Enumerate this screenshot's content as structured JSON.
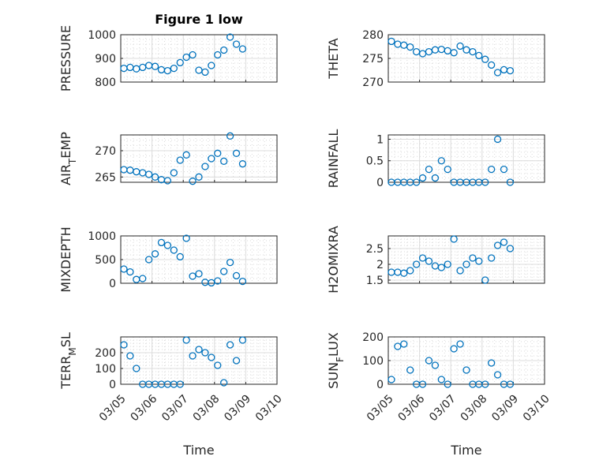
{
  "figure": {
    "title": "Figure 1 low"
  },
  "chart_data": [
    {
      "type": "scatter",
      "name": "PRESSURE",
      "ylabel": "PRESSURE",
      "ylabel_sub": "",
      "ylim": [
        800,
        1000
      ],
      "yticks": [
        "800",
        "900",
        "1000"
      ],
      "ytick_values": [
        800,
        900,
        1000
      ],
      "xlabel": "",
      "xticks": [],
      "title": "Figure 1 low",
      "color": "#0072BD",
      "x": [
        0.1,
        0.3,
        0.5,
        0.7,
        0.9,
        1.1,
        1.3,
        1.5,
        1.7,
        1.9,
        2.1,
        2.3,
        2.5,
        2.7,
        2.9,
        3.1,
        3.3,
        3.5,
        3.7,
        3.9
      ],
      "y": [
        858,
        862,
        856,
        862,
        870,
        866,
        852,
        848,
        858,
        882,
        905,
        915,
        850,
        842,
        870,
        915,
        935,
        990,
        960,
        940
      ]
    },
    {
      "type": "scatter",
      "name": "THETA",
      "ylabel": "THETA",
      "ylabel_sub": "",
      "ylim": [
        270,
        280
      ],
      "yticks": [
        "270",
        "275",
        "280"
      ],
      "ytick_values": [
        270,
        275,
        280
      ],
      "xlabel": "",
      "xticks": [],
      "title": "",
      "color": "#0072BD",
      "x": [
        0.1,
        0.3,
        0.5,
        0.7,
        0.9,
        1.1,
        1.3,
        1.5,
        1.7,
        1.9,
        2.1,
        2.3,
        2.5,
        2.7,
        2.9,
        3.1,
        3.3,
        3.5,
        3.7,
        3.9
      ],
      "y": [
        278.6,
        278.0,
        277.8,
        277.4,
        276.4,
        276.0,
        276.4,
        276.8,
        276.9,
        276.6,
        276.2,
        277.6,
        276.8,
        276.4,
        275.6,
        274.8,
        273.6,
        272.0,
        272.6,
        272.4
      ]
    },
    {
      "type": "scatter",
      "name": "AIR_TEMP",
      "ylabel": "AIR",
      "ylabel_sub": "T",
      "ylabel_rest": "EMP",
      "ylim": [
        264,
        273
      ],
      "yticks": [
        "265",
        "270"
      ],
      "ytick_values": [
        265,
        270
      ],
      "xlabel": "",
      "xticks": [],
      "title": "",
      "color": "#0072BD",
      "x": [
        0.1,
        0.3,
        0.5,
        0.7,
        0.9,
        1.1,
        1.3,
        1.5,
        1.7,
        1.9,
        2.1,
        2.3,
        2.5,
        2.7,
        2.9,
        3.1,
        3.3,
        3.5,
        3.7,
        3.9
      ],
      "y": [
        266.4,
        266.3,
        266.0,
        265.8,
        265.5,
        265.0,
        264.5,
        264.3,
        265.8,
        268.2,
        269.2,
        264.2,
        265.0,
        267.0,
        268.5,
        269.5,
        268.0,
        272.8,
        269.5,
        267.5
      ]
    },
    {
      "type": "scatter",
      "name": "RAINFALL",
      "ylabel": "RAINFALL",
      "ylabel_sub": "",
      "ylim": [
        0,
        1.1
      ],
      "yticks": [
        "0",
        "0.5",
        "1"
      ],
      "ytick_values": [
        0,
        0.5,
        1
      ],
      "xlabel": "",
      "xticks": [],
      "title": "",
      "color": "#0072BD",
      "x": [
        0.1,
        0.3,
        0.5,
        0.7,
        0.9,
        1.1,
        1.3,
        1.5,
        1.7,
        1.9,
        2.1,
        2.3,
        2.5,
        2.7,
        2.9,
        3.1,
        3.3,
        3.5,
        3.7,
        3.9
      ],
      "y": [
        0,
        0,
        0,
        0,
        0,
        0.1,
        0.3,
        0.1,
        0.5,
        0.3,
        0,
        0,
        0,
        0,
        0,
        0,
        0.3,
        1.0,
        0.3,
        0
      ]
    },
    {
      "type": "scatter",
      "name": "MIXDEPTH",
      "ylabel": "MIXDEPTH",
      "ylabel_sub": "",
      "ylim": [
        0,
        1000
      ],
      "yticks": [
        "0",
        "500",
        "1000"
      ],
      "ytick_values": [
        0,
        500,
        1000
      ],
      "xlabel": "",
      "xticks": [],
      "title": "",
      "color": "#0072BD",
      "x": [
        0.1,
        0.3,
        0.5,
        0.7,
        0.9,
        1.1,
        1.3,
        1.5,
        1.7,
        1.9,
        2.1,
        2.3,
        2.5,
        2.7,
        2.9,
        3.1,
        3.3,
        3.5,
        3.7,
        3.9
      ],
      "y": [
        300,
        240,
        80,
        100,
        500,
        620,
        860,
        800,
        700,
        560,
        950,
        150,
        200,
        20,
        10,
        50,
        250,
        440,
        160,
        40
      ]
    },
    {
      "type": "scatter",
      "name": "H2OMIXRA",
      "ylabel": "H2OMIXRA",
      "ylabel_sub": "",
      "ylim": [
        1.4,
        2.9
      ],
      "yticks": [
        "1.5",
        "2",
        "2.5"
      ],
      "ytick_values": [
        1.5,
        2,
        2.5
      ],
      "xlabel": "",
      "xticks": [],
      "title": "",
      "color": "#0072BD",
      "x": [
        0.1,
        0.3,
        0.5,
        0.7,
        0.9,
        1.1,
        1.3,
        1.5,
        1.7,
        1.9,
        2.1,
        2.3,
        2.5,
        2.7,
        2.9,
        3.1,
        3.3,
        3.5,
        3.7,
        3.9
      ],
      "y": [
        1.75,
        1.75,
        1.72,
        1.8,
        2.0,
        2.2,
        2.1,
        1.95,
        1.9,
        2.0,
        2.8,
        1.8,
        2.0,
        2.2,
        2.1,
        1.5,
        2.2,
        2.6,
        2.7,
        2.5
      ]
    },
    {
      "type": "scatter",
      "name": "TERR_MSL",
      "ylabel": "TERR",
      "ylabel_sub": "M",
      "ylabel_rest": "SL",
      "ylim": [
        0,
        300
      ],
      "yticks": [
        "0",
        "100",
        "200"
      ],
      "ytick_values": [
        0,
        100,
        200
      ],
      "xlabel": "Time",
      "xticks": [
        "03/05",
        "03/06",
        "03/07",
        "03/08",
        "03/09",
        "03/10"
      ],
      "xtick_values": [
        0,
        1,
        2,
        3,
        4,
        5
      ],
      "title": "",
      "color": "#0072BD",
      "x": [
        0.1,
        0.3,
        0.5,
        0.7,
        0.9,
        1.1,
        1.3,
        1.5,
        1.7,
        1.9,
        2.1,
        2.3,
        2.5,
        2.7,
        2.9,
        3.1,
        3.3,
        3.5,
        3.7,
        3.9
      ],
      "y": [
        250,
        180,
        100,
        0,
        0,
        0,
        0,
        0,
        0,
        0,
        280,
        180,
        220,
        200,
        170,
        120,
        10,
        250,
        150,
        280
      ]
    },
    {
      "type": "scatter",
      "name": "SUN_FLUX",
      "ylabel": "SUN",
      "ylabel_sub": "F",
      "ylabel_rest": "LUX",
      "ylim": [
        0,
        200
      ],
      "yticks": [
        "0",
        "100",
        "200"
      ],
      "ytick_values": [
        0,
        100,
        200
      ],
      "xlabel": "Time",
      "xticks": [
        "03/05",
        "03/06",
        "03/07",
        "03/08",
        "03/09",
        "03/10"
      ],
      "xtick_values": [
        0,
        1,
        2,
        3,
        4,
        5
      ],
      "title": "",
      "color": "#0072BD",
      "x": [
        0.1,
        0.3,
        0.5,
        0.7,
        0.9,
        1.1,
        1.3,
        1.5,
        1.7,
        1.9,
        2.1,
        2.3,
        2.5,
        2.7,
        2.9,
        3.1,
        3.3,
        3.5,
        3.7,
        3.9
      ],
      "y": [
        20,
        160,
        170,
        60,
        0,
        0,
        100,
        80,
        20,
        0,
        150,
        170,
        60,
        0,
        0,
        0,
        90,
        40,
        0,
        0
      ]
    }
  ]
}
